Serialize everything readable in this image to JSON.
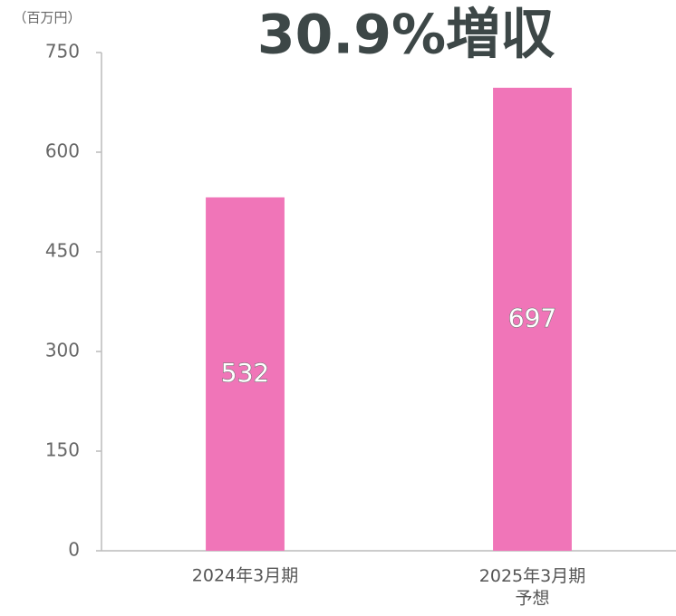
{
  "chart_data": {
    "type": "bar",
    "title": "30.9%増収",
    "y_label": "（百万円）",
    "categories": [
      "2024年3月期",
      "2025年3月期\n予想"
    ],
    "values": [
      532,
      697
    ],
    "color": "#f075b8",
    "ylim": [
      0,
      750
    ],
    "yticks": [
      0,
      150,
      300,
      450,
      600,
      750
    ]
  }
}
